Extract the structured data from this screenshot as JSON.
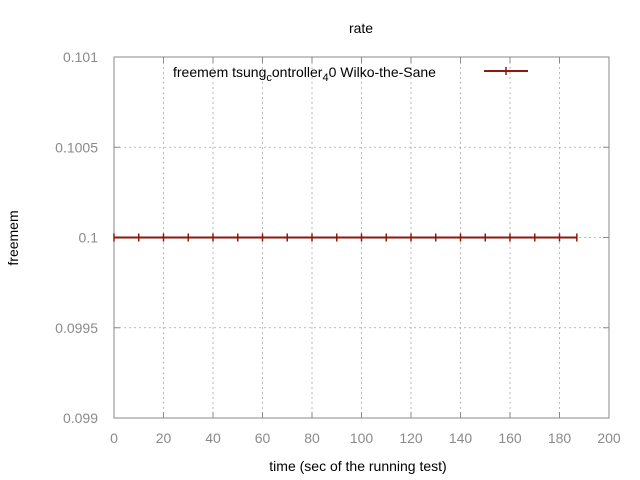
{
  "chart_data": {
    "type": "line",
    "title": "rate",
    "xlabel": "time (sec of the running test)",
    "ylabel": "freemem",
    "xlim": [
      0,
      200
    ],
    "ylim": [
      0.099,
      0.101
    ],
    "xticks": [
      0,
      20,
      40,
      60,
      80,
      100,
      120,
      140,
      160,
      180,
      200
    ],
    "yticks": [
      0.099,
      0.0995,
      0.1,
      0.1005,
      0.101
    ],
    "xtick_labels": [
      "0",
      "20",
      "40",
      "60",
      "80",
      "100",
      "120",
      "140",
      "160",
      "180",
      "200"
    ],
    "ytick_labels": [
      "0.099",
      "0.0995",
      "0.1",
      "0.1005",
      "0.101"
    ],
    "grid": true,
    "legend_position": "top-right",
    "series": [
      {
        "name": "freemem tsung_controller_4 0 Wilko-the-Sane",
        "legend_parts": [
          "freemem tsung",
          "c",
          "ontroller",
          "4",
          "0 Wilko-the-Sane"
        ],
        "color": "#8b1a0e",
        "x": [
          0,
          10,
          20,
          30,
          40,
          50,
          60,
          70,
          80,
          90,
          100,
          110,
          120,
          130,
          140,
          150,
          160,
          170,
          180,
          187
        ],
        "y": [
          0.1,
          0.1,
          0.1,
          0.1,
          0.1,
          0.1,
          0.1,
          0.1,
          0.1,
          0.1,
          0.1,
          0.1,
          0.1,
          0.1,
          0.1,
          0.1,
          0.1,
          0.1,
          0.1,
          0.1
        ]
      }
    ]
  }
}
